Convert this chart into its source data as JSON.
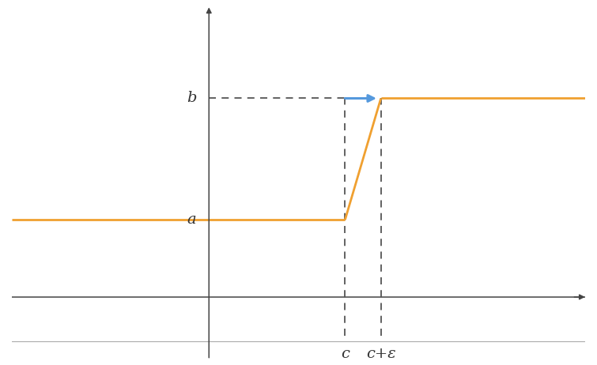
{
  "bg_color": "#ffffff",
  "orange_color": "#f0a030",
  "blue_color": "#5599dd",
  "dashed_color": "#555555",
  "axis_color": "#444444",
  "label_color": "#333333",
  "a_val": 0.28,
  "b_val": 0.72,
  "c_val": 0.38,
  "eps_val": 0.1,
  "xlim": [
    -0.55,
    1.05
  ],
  "ylim": [
    -0.22,
    1.05
  ],
  "label_a": "a",
  "label_b": "b",
  "label_c": "c",
  "label_ceps": "c+ε",
  "font_size": 14,
  "line_width": 2.0,
  "dash_lw": 1.3,
  "axis_lw": 1.1
}
